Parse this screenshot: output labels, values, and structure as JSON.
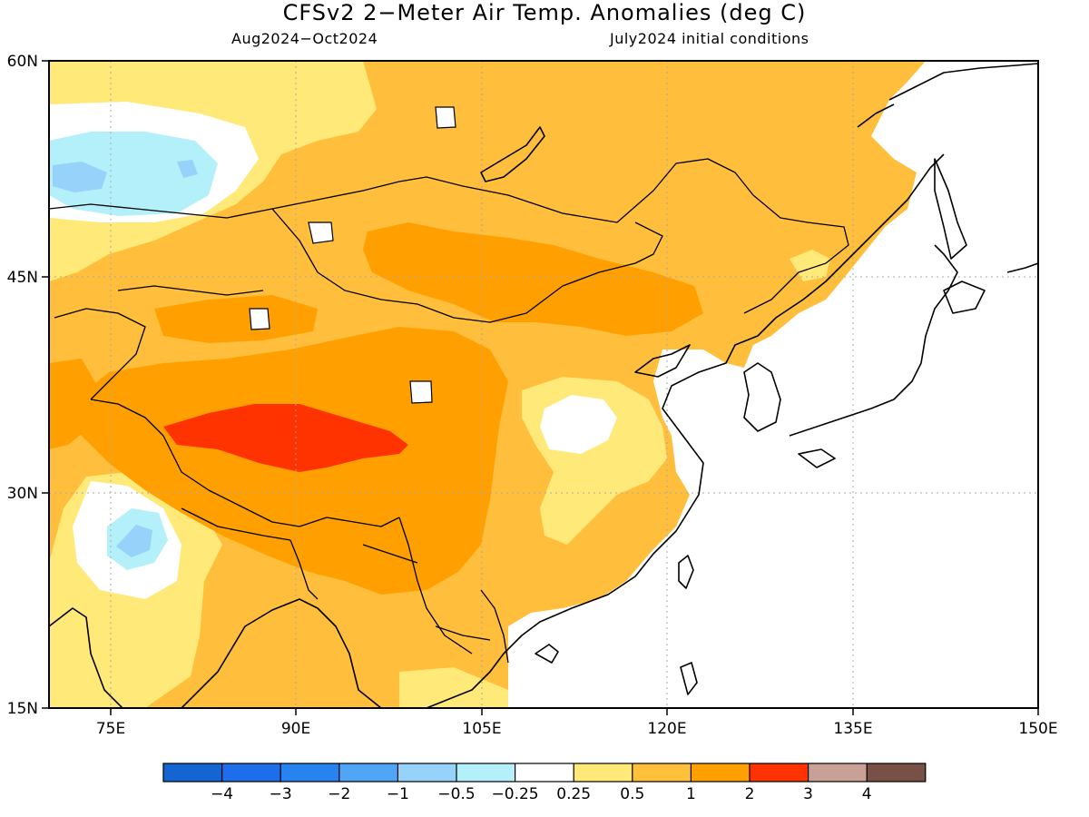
{
  "title": "CFSv2 2−Meter Air Temp. Anomalies (deg C)",
  "subtitle_left": "Aug2024−Oct2024",
  "subtitle_right": "July2024 initial conditions",
  "map": {
    "lon_range": [
      70,
      150
    ],
    "lat_range": [
      15,
      60
    ],
    "lat_ticks": [
      {
        "value": 60,
        "label": "60N"
      },
      {
        "value": 45,
        "label": "45N"
      },
      {
        "value": 30,
        "label": "30N"
      },
      {
        "value": 15,
        "label": "15N"
      }
    ],
    "lon_ticks": [
      {
        "value": 75,
        "label": "75E"
      },
      {
        "value": 90,
        "label": "90E"
      },
      {
        "value": 105,
        "label": "105E"
      },
      {
        "value": 120,
        "label": "120E"
      },
      {
        "value": 135,
        "label": "135E"
      },
      {
        "value": 150,
        "label": "150E"
      }
    ],
    "gridlines": "dotted",
    "ocean_masked": true
  },
  "anomaly_regions": [
    {
      "name": "Tibetan Plateau",
      "category": "2 to 3",
      "color": "#ff3300"
    },
    {
      "name": "Mongolia and central China",
      "category": "1 to 2",
      "color": "#ffa000"
    },
    {
      "name": "Siberia and northeast China",
      "category": "0.5 to 1",
      "color": "#ffb833"
    },
    {
      "name": "North China Plain",
      "category": "-0.25 to 0.25",
      "color": "#ffffff"
    },
    {
      "name": "Western Siberia",
      "category": "-1 to -0.5",
      "color": "#a0e4f8"
    },
    {
      "name": "Central India",
      "category": "-1 to -0.5",
      "color": "#a0e4f8"
    }
  ],
  "colorbar": {
    "colors": [
      "#1464d2",
      "#1e6eeb",
      "#2882f0",
      "#50a5f5",
      "#96d2fa",
      "#b4f0fa",
      "#ffffff",
      "#ffe978",
      "#ffc03c",
      "#ffa000",
      "#ff3300",
      "#c8a096",
      "#785046"
    ],
    "labels": [
      "−4",
      "−3",
      "−2",
      "−1",
      "−0.5",
      "−0.25",
      "0.25",
      "0.5",
      "1",
      "2",
      "3",
      "4"
    ]
  }
}
